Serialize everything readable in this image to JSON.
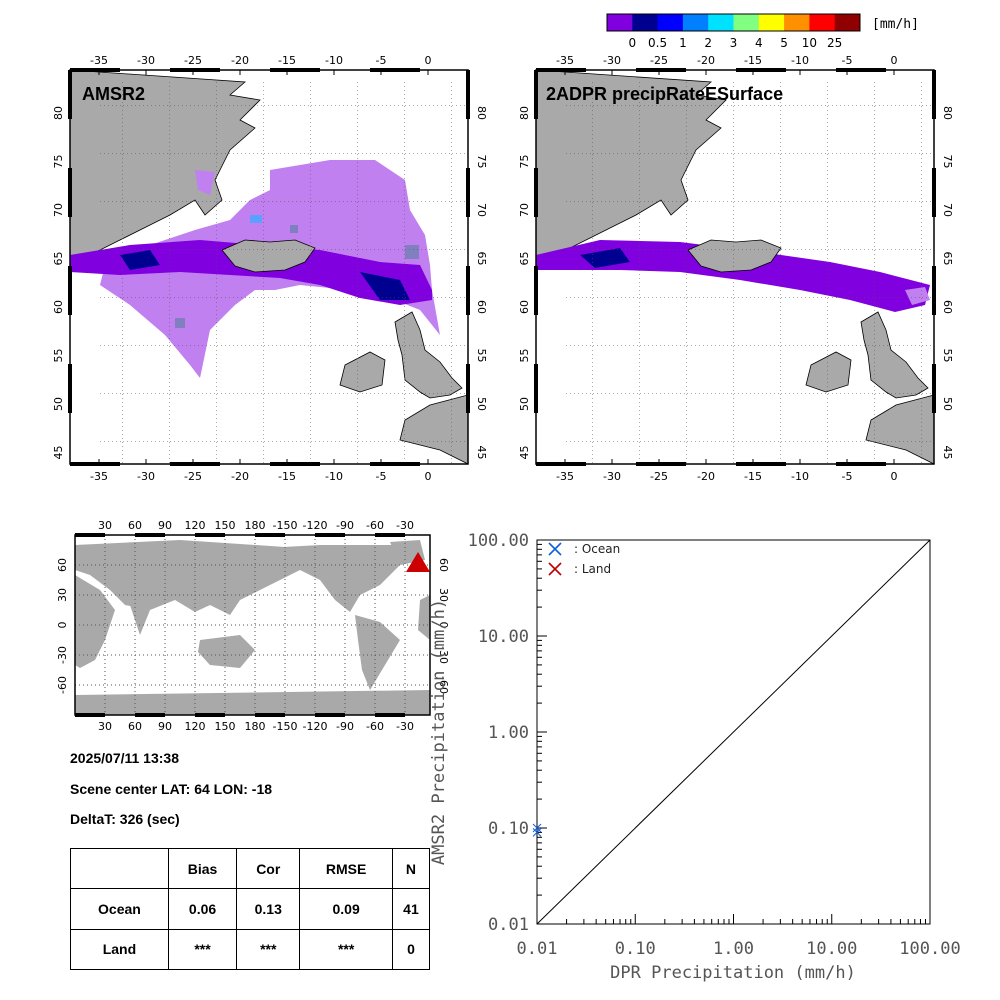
{
  "colorbar": {
    "unit": "[mm/h]",
    "colors": [
      "#8000e0",
      "#000090",
      "#0000ff",
      "#0080ff",
      "#00e0ff",
      "#80ff80",
      "#ffff00",
      "#ff9000",
      "#ff0000",
      "#900000"
    ],
    "labels": [
      "0",
      "0.5",
      "1",
      "2",
      "3",
      "4",
      "5",
      "10",
      "25"
    ]
  },
  "maps": [
    {
      "title": "AMSR2"
    },
    {
      "title": "2ADPR precipRateESurface"
    }
  ],
  "map_axes": {
    "lon_labels": [
      "-35",
      "-30",
      "-25",
      "-20",
      "-15",
      "-10",
      "-5",
      "0"
    ],
    "lat_labels": [
      "80",
      "75",
      "70",
      "65",
      "60",
      "55",
      "50",
      "45"
    ]
  },
  "globe_axes": {
    "lon_labels": [
      "30",
      "60",
      "90",
      "120",
      "150",
      "180",
      "-150",
      "-120",
      "-90",
      "-60",
      "-30"
    ],
    "lat_labels": [
      "60",
      "30",
      "0",
      "-30",
      "-60"
    ]
  },
  "scene": {
    "datetime": "2025/07/11 13:38",
    "center": "Scene center LAT: 64   LON: -18",
    "delta": "DeltaT:  326 (sec)"
  },
  "stats": {
    "headers": [
      "",
      "Bias",
      "Cor",
      "RMSE",
      "N"
    ],
    "rows": [
      {
        "label": "Ocean",
        "bias": "0.06",
        "cor": "0.13",
        "rmse": "0.09",
        "n": "41"
      },
      {
        "label": "Land",
        "bias": "***",
        "cor": "***",
        "rmse": "***",
        "n": "0"
      }
    ]
  },
  "chart_data": {
    "type": "scatter",
    "xlabel": "DPR Precipitation (mm/h)",
    "ylabel": "AMSR2 Precipitation (mm/h)",
    "xlim": [
      0.01,
      100
    ],
    "ylim": [
      0.01,
      100
    ],
    "log_scale": true,
    "tick_labels": [
      "0.01",
      "0.10",
      "1.00",
      "10.00",
      "100.00"
    ],
    "tick_values": [
      0.01,
      0.1,
      1,
      10,
      100
    ],
    "legend": [
      {
        "name": ": Ocean",
        "color": "#1060e0"
      },
      {
        "name": ": Land",
        "color": "#c00000"
      }
    ],
    "series": [
      {
        "name": ": Ocean",
        "points": [
          [
            0.01,
            0.1
          ],
          [
            0.01,
            0.09
          ]
        ]
      },
      {
        "name": ": Land",
        "points": []
      }
    ]
  }
}
